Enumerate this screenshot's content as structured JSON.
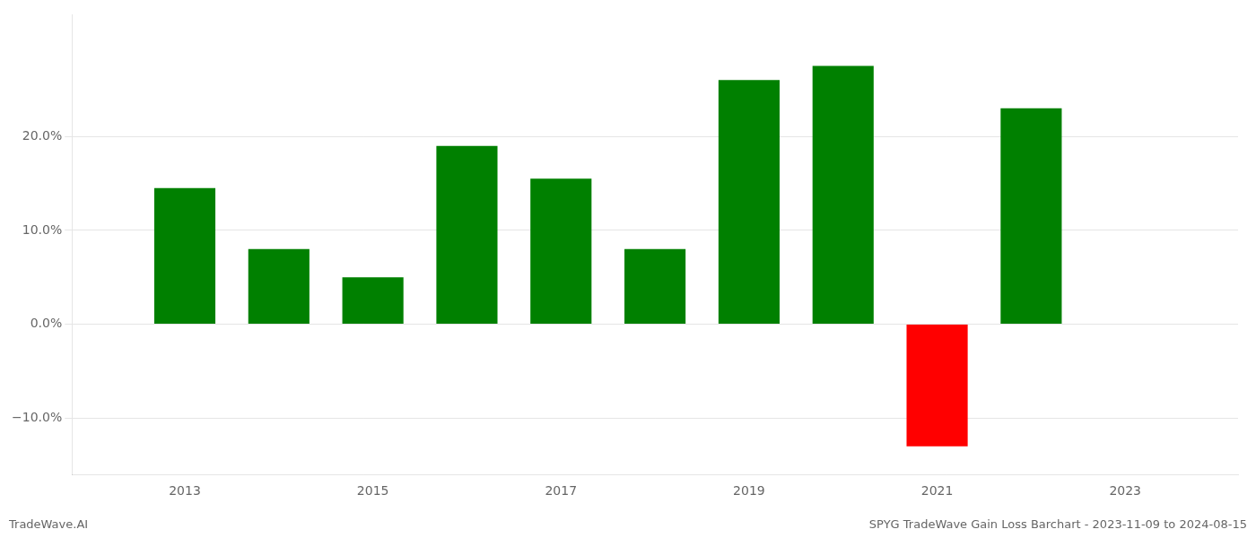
{
  "chart_data": {
    "type": "bar",
    "title": "SPYG TradeWave Gain Loss Barchart - 2023-11-09 to 2024-08-15",
    "annotations": [
      "TradeWave.AI"
    ],
    "x": [
      2013,
      2014,
      2015,
      2016,
      2017,
      2018,
      2019,
      2020,
      2021,
      2022
    ],
    "values": [
      14.5,
      8.0,
      5.0,
      19.0,
      15.5,
      8.0,
      26.0,
      27.5,
      -13.0,
      23.0
    ],
    "colors": [
      "#008000",
      "#008000",
      "#008000",
      "#008000",
      "#008000",
      "#008000",
      "#008000",
      "#008000",
      "#ff0000",
      "#008000"
    ],
    "xlim": [
      2011.8,
      2024.2
    ],
    "xticks": [
      2013,
      2015,
      2017,
      2019,
      2021,
      2023
    ],
    "ylim": [
      -16,
      33
    ],
    "yticks": [
      {
        "value": -10,
        "label": "−10.0%"
      },
      {
        "value": 0,
        "label": "0.0%"
      },
      {
        "value": 10,
        "label": "10.0%"
      },
      {
        "value": 20,
        "label": "20.0%"
      }
    ],
    "grid": "y"
  }
}
